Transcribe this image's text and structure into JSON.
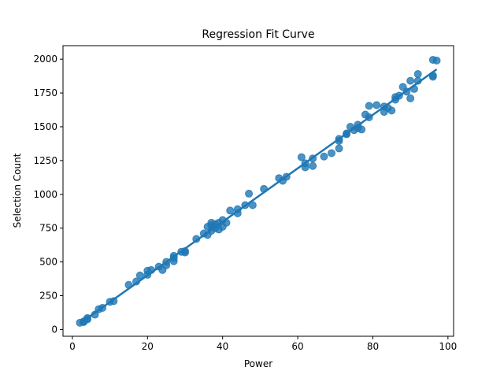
{
  "chart_data": {
    "type": "scatter",
    "title": "Regression Fit Curve",
    "xlabel": "Power",
    "ylabel": "Selection Count",
    "xlim": [
      -2.5,
      101.5
    ],
    "ylim": [
      -50,
      2100
    ],
    "xticks": [
      0,
      20,
      40,
      60,
      80,
      100
    ],
    "yticks": [
      0,
      250,
      500,
      750,
      1000,
      1250,
      1500,
      1750,
      2000
    ],
    "grid": false,
    "legend": "none",
    "color": "#1f77b4",
    "points": {
      "x": [
        2,
        3,
        3,
        4,
        4,
        6,
        7,
        8,
        10,
        11,
        15,
        17,
        18,
        20,
        20,
        21,
        23,
        24,
        25,
        25,
        27,
        27,
        27,
        29,
        30,
        30,
        33,
        35,
        36,
        36,
        37,
        37,
        37,
        38,
        38,
        39,
        39,
        40,
        40,
        41,
        42,
        44,
        44,
        46,
        47,
        48,
        51,
        55,
        56,
        57,
        61,
        62,
        62,
        64,
        64,
        67,
        69,
        71,
        71,
        71,
        73,
        73,
        74,
        75,
        76,
        76,
        77,
        78,
        79,
        79,
        81,
        83,
        83,
        84,
        85,
        86,
        86,
        87,
        88,
        89,
        90,
        90,
        91,
        92,
        92,
        96,
        96,
        96,
        97
      ],
      "y": [
        50,
        55,
        60,
        75,
        85,
        110,
        150,
        160,
        205,
        210,
        330,
        355,
        400,
        405,
        435,
        440,
        465,
        440,
        475,
        500,
        505,
        530,
        545,
        575,
        570,
        580,
        670,
        710,
        700,
        760,
        730,
        770,
        790,
        750,
        780,
        740,
        790,
        760,
        810,
        790,
        880,
        860,
        890,
        920,
        1005,
        920,
        1040,
        1120,
        1100,
        1130,
        1275,
        1200,
        1230,
        1265,
        1210,
        1280,
        1305,
        1340,
        1395,
        1410,
        1450,
        1445,
        1500,
        1475,
        1490,
        1515,
        1480,
        1590,
        1570,
        1655,
        1660,
        1610,
        1650,
        1640,
        1620,
        1700,
        1720,
        1730,
        1795,
        1760,
        1710,
        1840,
        1780,
        1840,
        1890,
        1880,
        1870,
        1995,
        1990
      ]
    },
    "fit_line": {
      "x": [
        2,
        97
      ],
      "y": [
        45,
        1925
      ]
    }
  }
}
